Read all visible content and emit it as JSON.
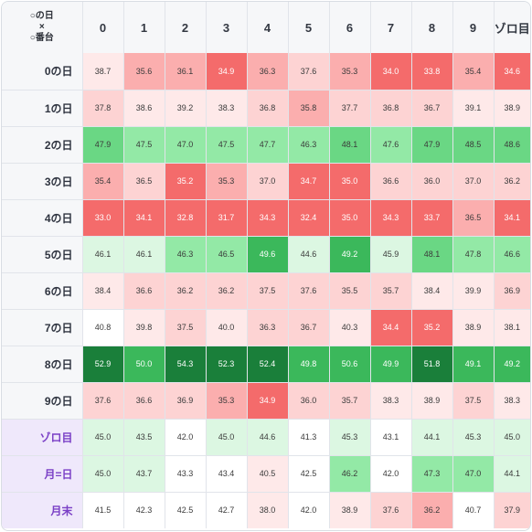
{
  "header": {
    "corner_line1": "○の日",
    "corner_line2": "×",
    "corner_line3": "○番台",
    "columns": [
      "0",
      "1",
      "2",
      "3",
      "4",
      "5",
      "6",
      "7",
      "8",
      "9",
      "ゾロ目"
    ]
  },
  "colors": {
    "red_strong": "#f46b6b",
    "red_mid": "#fbaeae",
    "red_light": "#fdd3d3",
    "red_faint": "#fee9e9",
    "neutral": "#ffffff",
    "green_faint": "#dcf7e2",
    "green_light": "#93e9a6",
    "green_mid": "#6ad784",
    "green_strong": "#3bb85b",
    "green_dark": "#1a7f3a",
    "special_label": "#7a3fc6"
  },
  "rows": [
    {
      "label": "0の日",
      "special": false,
      "cells": [
        {
          "v": "38.7",
          "c": "red_faint"
        },
        {
          "v": "35.6",
          "c": "red_mid"
        },
        {
          "v": "36.1",
          "c": "red_mid"
        },
        {
          "v": "34.9",
          "c": "red_strong"
        },
        {
          "v": "36.3",
          "c": "red_mid"
        },
        {
          "v": "37.6",
          "c": "red_light"
        },
        {
          "v": "35.3",
          "c": "red_mid"
        },
        {
          "v": "34.0",
          "c": "red_strong"
        },
        {
          "v": "33.8",
          "c": "red_strong"
        },
        {
          "v": "35.4",
          "c": "red_mid"
        },
        {
          "v": "34.6",
          "c": "red_strong"
        }
      ]
    },
    {
      "label": "1の日",
      "special": false,
      "cells": [
        {
          "v": "37.8",
          "c": "red_light"
        },
        {
          "v": "38.6",
          "c": "red_faint"
        },
        {
          "v": "39.2",
          "c": "red_faint"
        },
        {
          "v": "38.3",
          "c": "red_faint"
        },
        {
          "v": "36.8",
          "c": "red_light"
        },
        {
          "v": "35.8",
          "c": "red_mid"
        },
        {
          "v": "37.7",
          "c": "red_light"
        },
        {
          "v": "36.8",
          "c": "red_light"
        },
        {
          "v": "36.7",
          "c": "red_light"
        },
        {
          "v": "39.1",
          "c": "red_faint"
        },
        {
          "v": "38.9",
          "c": "red_faint"
        }
      ]
    },
    {
      "label": "2の日",
      "special": false,
      "cells": [
        {
          "v": "47.9",
          "c": "green_mid"
        },
        {
          "v": "47.5",
          "c": "green_light"
        },
        {
          "v": "47.0",
          "c": "green_light"
        },
        {
          "v": "47.5",
          "c": "green_light"
        },
        {
          "v": "47.7",
          "c": "green_light"
        },
        {
          "v": "46.3",
          "c": "green_light"
        },
        {
          "v": "48.1",
          "c": "green_mid"
        },
        {
          "v": "47.6",
          "c": "green_light"
        },
        {
          "v": "47.9",
          "c": "green_mid"
        },
        {
          "v": "48.5",
          "c": "green_mid"
        },
        {
          "v": "48.6",
          "c": "green_mid"
        }
      ]
    },
    {
      "label": "3の日",
      "special": false,
      "cells": [
        {
          "v": "35.4",
          "c": "red_mid"
        },
        {
          "v": "36.5",
          "c": "red_light"
        },
        {
          "v": "35.2",
          "c": "red_strong"
        },
        {
          "v": "35.3",
          "c": "red_mid"
        },
        {
          "v": "37.0",
          "c": "red_light"
        },
        {
          "v": "34.7",
          "c": "red_strong"
        },
        {
          "v": "35.0",
          "c": "red_strong"
        },
        {
          "v": "36.6",
          "c": "red_light"
        },
        {
          "v": "36.0",
          "c": "red_light"
        },
        {
          "v": "37.0",
          "c": "red_light"
        },
        {
          "v": "36.2",
          "c": "red_light"
        }
      ]
    },
    {
      "label": "4の日",
      "special": false,
      "cells": [
        {
          "v": "33.0",
          "c": "red_strong"
        },
        {
          "v": "34.1",
          "c": "red_strong"
        },
        {
          "v": "32.8",
          "c": "red_strong"
        },
        {
          "v": "31.7",
          "c": "red_strong"
        },
        {
          "v": "34.3",
          "c": "red_strong"
        },
        {
          "v": "32.4",
          "c": "red_strong"
        },
        {
          "v": "35.0",
          "c": "red_strong"
        },
        {
          "v": "34.3",
          "c": "red_strong"
        },
        {
          "v": "33.7",
          "c": "red_strong"
        },
        {
          "v": "36.5",
          "c": "red_mid"
        },
        {
          "v": "34.1",
          "c": "red_strong"
        }
      ]
    },
    {
      "label": "5の日",
      "special": false,
      "cells": [
        {
          "v": "46.1",
          "c": "green_faint"
        },
        {
          "v": "46.1",
          "c": "green_faint"
        },
        {
          "v": "46.3",
          "c": "green_light"
        },
        {
          "v": "46.5",
          "c": "green_light"
        },
        {
          "v": "49.6",
          "c": "green_strong"
        },
        {
          "v": "44.6",
          "c": "green_faint"
        },
        {
          "v": "49.2",
          "c": "green_strong"
        },
        {
          "v": "45.9",
          "c": "green_faint"
        },
        {
          "v": "48.1",
          "c": "green_mid"
        },
        {
          "v": "47.8",
          "c": "green_light"
        },
        {
          "v": "46.6",
          "c": "green_light"
        }
      ]
    },
    {
      "label": "6の日",
      "special": false,
      "cells": [
        {
          "v": "38.4",
          "c": "red_faint"
        },
        {
          "v": "36.6",
          "c": "red_light"
        },
        {
          "v": "36.2",
          "c": "red_light"
        },
        {
          "v": "36.2",
          "c": "red_light"
        },
        {
          "v": "37.5",
          "c": "red_light"
        },
        {
          "v": "37.6",
          "c": "red_light"
        },
        {
          "v": "35.5",
          "c": "red_light"
        },
        {
          "v": "35.7",
          "c": "red_light"
        },
        {
          "v": "38.4",
          "c": "red_faint"
        },
        {
          "v": "39.9",
          "c": "red_faint"
        },
        {
          "v": "36.9",
          "c": "red_light"
        }
      ]
    },
    {
      "label": "7の日",
      "special": false,
      "cells": [
        {
          "v": "40.8",
          "c": "neutral"
        },
        {
          "v": "39.8",
          "c": "red_faint"
        },
        {
          "v": "37.5",
          "c": "red_light"
        },
        {
          "v": "40.0",
          "c": "red_faint"
        },
        {
          "v": "36.3",
          "c": "red_light"
        },
        {
          "v": "36.7",
          "c": "red_light"
        },
        {
          "v": "40.3",
          "c": "red_faint"
        },
        {
          "v": "34.4",
          "c": "red_strong"
        },
        {
          "v": "35.2",
          "c": "red_strong"
        },
        {
          "v": "38.9",
          "c": "red_faint"
        },
        {
          "v": "38.1",
          "c": "red_faint"
        }
      ]
    },
    {
      "label": "8の日",
      "special": false,
      "cells": [
        {
          "v": "52.9",
          "c": "green_dark"
        },
        {
          "v": "50.0",
          "c": "green_strong"
        },
        {
          "v": "54.3",
          "c": "green_dark"
        },
        {
          "v": "52.3",
          "c": "green_dark"
        },
        {
          "v": "52.4",
          "c": "green_dark"
        },
        {
          "v": "49.8",
          "c": "green_strong"
        },
        {
          "v": "50.6",
          "c": "green_strong"
        },
        {
          "v": "49.9",
          "c": "green_strong"
        },
        {
          "v": "51.8",
          "c": "green_dark"
        },
        {
          "v": "49.1",
          "c": "green_strong"
        },
        {
          "v": "49.2",
          "c": "green_strong"
        }
      ]
    },
    {
      "label": "9の日",
      "special": false,
      "cells": [
        {
          "v": "37.6",
          "c": "red_light"
        },
        {
          "v": "36.6",
          "c": "red_light"
        },
        {
          "v": "36.9",
          "c": "red_light"
        },
        {
          "v": "35.3",
          "c": "red_mid"
        },
        {
          "v": "34.9",
          "c": "red_strong"
        },
        {
          "v": "36.0",
          "c": "red_light"
        },
        {
          "v": "35.7",
          "c": "red_light"
        },
        {
          "v": "38.3",
          "c": "red_faint"
        },
        {
          "v": "38.9",
          "c": "red_faint"
        },
        {
          "v": "37.5",
          "c": "red_light"
        },
        {
          "v": "38.3",
          "c": "red_faint"
        }
      ]
    },
    {
      "label": "ゾロ目",
      "special": true,
      "cells": [
        {
          "v": "45.0",
          "c": "green_faint"
        },
        {
          "v": "43.5",
          "c": "green_faint"
        },
        {
          "v": "42.0",
          "c": "neutral"
        },
        {
          "v": "45.0",
          "c": "green_faint"
        },
        {
          "v": "44.6",
          "c": "green_faint"
        },
        {
          "v": "41.3",
          "c": "neutral"
        },
        {
          "v": "45.3",
          "c": "green_faint"
        },
        {
          "v": "43.1",
          "c": "neutral"
        },
        {
          "v": "44.1",
          "c": "green_faint"
        },
        {
          "v": "45.3",
          "c": "green_faint"
        },
        {
          "v": "45.0",
          "c": "green_faint"
        }
      ]
    },
    {
      "label": "月=日",
      "special": true,
      "cells": [
        {
          "v": "45.0",
          "c": "green_faint"
        },
        {
          "v": "43.7",
          "c": "green_faint"
        },
        {
          "v": "43.3",
          "c": "neutral"
        },
        {
          "v": "43.4",
          "c": "neutral"
        },
        {
          "v": "40.5",
          "c": "red_faint"
        },
        {
          "v": "42.5",
          "c": "neutral"
        },
        {
          "v": "46.2",
          "c": "green_light"
        },
        {
          "v": "42.0",
          "c": "neutral"
        },
        {
          "v": "47.3",
          "c": "green_light"
        },
        {
          "v": "47.0",
          "c": "green_light"
        },
        {
          "v": "44.1",
          "c": "green_faint"
        }
      ]
    },
    {
      "label": "月末",
      "special": true,
      "cells": [
        {
          "v": "41.5",
          "c": "neutral"
        },
        {
          "v": "42.3",
          "c": "neutral"
        },
        {
          "v": "42.5",
          "c": "neutral"
        },
        {
          "v": "42.7",
          "c": "neutral"
        },
        {
          "v": "38.0",
          "c": "red_faint"
        },
        {
          "v": "42.0",
          "c": "neutral"
        },
        {
          "v": "38.9",
          "c": "red_faint"
        },
        {
          "v": "37.6",
          "c": "red_light"
        },
        {
          "v": "36.2",
          "c": "red_mid"
        },
        {
          "v": "40.7",
          "c": "neutral"
        },
        {
          "v": "37.9",
          "c": "red_light"
        }
      ]
    }
  ]
}
